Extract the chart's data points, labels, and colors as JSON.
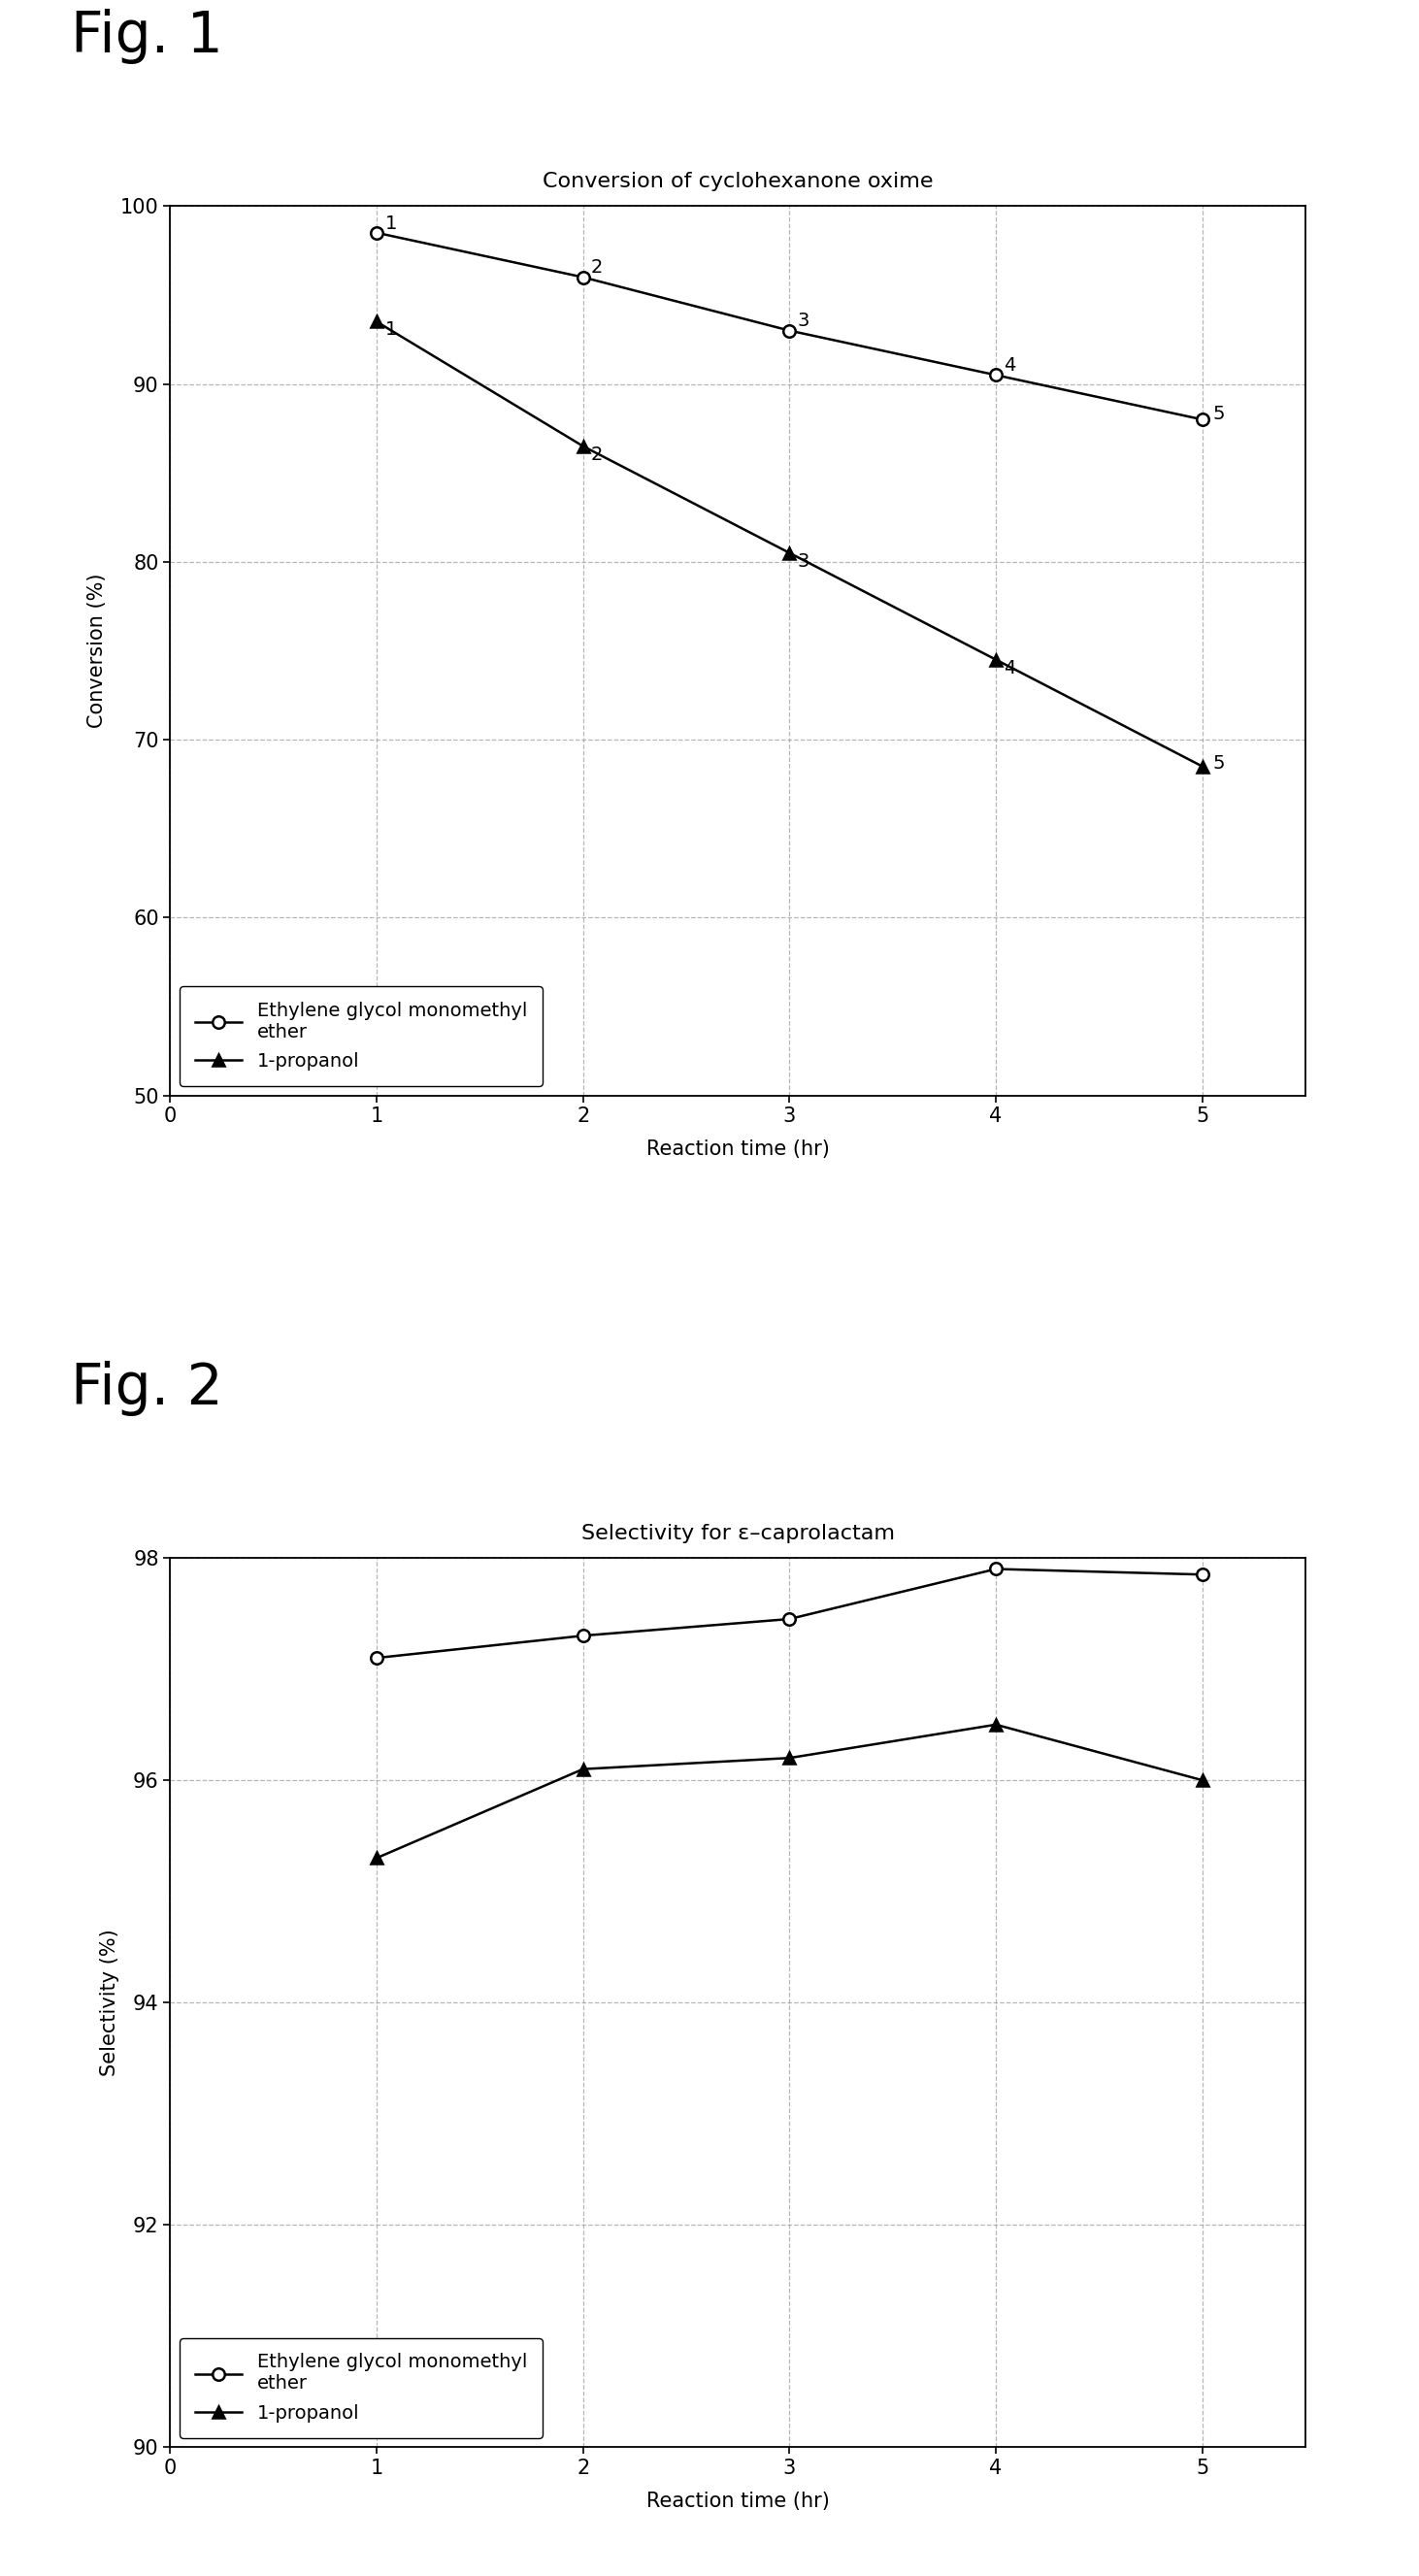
{
  "fig1_title": "Conversion of cyclohexanone oxime",
  "fig2_title": "Selectivity for ε–caprolactam",
  "xlabel": "Reaction time (hr)",
  "fig1_ylabel": "Conversion (%)",
  "fig2_ylabel": "Selectivity (%)",
  "x": [
    1,
    2,
    3,
    4,
    5
  ],
  "fig1_egme": [
    98.5,
    96.0,
    93.0,
    90.5,
    88.0
  ],
  "fig1_prop": [
    93.5,
    86.5,
    80.5,
    74.5,
    68.5
  ],
  "fig2_egme": [
    97.1,
    97.3,
    97.45,
    97.9,
    97.85
  ],
  "fig2_prop": [
    95.3,
    96.1,
    96.2,
    96.5,
    96.0
  ],
  "fig1_ylim": [
    50,
    100
  ],
  "fig1_yticks": [
    50,
    60,
    70,
    80,
    90,
    100
  ],
  "fig2_ylim": [
    90,
    98
  ],
  "fig2_yticks": [
    90,
    92,
    94,
    96,
    98
  ],
  "xlim": [
    0,
    5.5
  ],
  "xticks": [
    0,
    1,
    2,
    3,
    4,
    5
  ],
  "fig1_label": "Fig. 1",
  "fig2_label": "Fig. 2",
  "legend_egme": "Ethylene glycol monomethyl\nether",
  "legend_prop": "1-propanol",
  "background": "#ffffff",
  "line_color": "#000000",
  "grid_color": "#999999",
  "point_labels": [
    "1",
    "2",
    "3",
    "4",
    "5"
  ]
}
